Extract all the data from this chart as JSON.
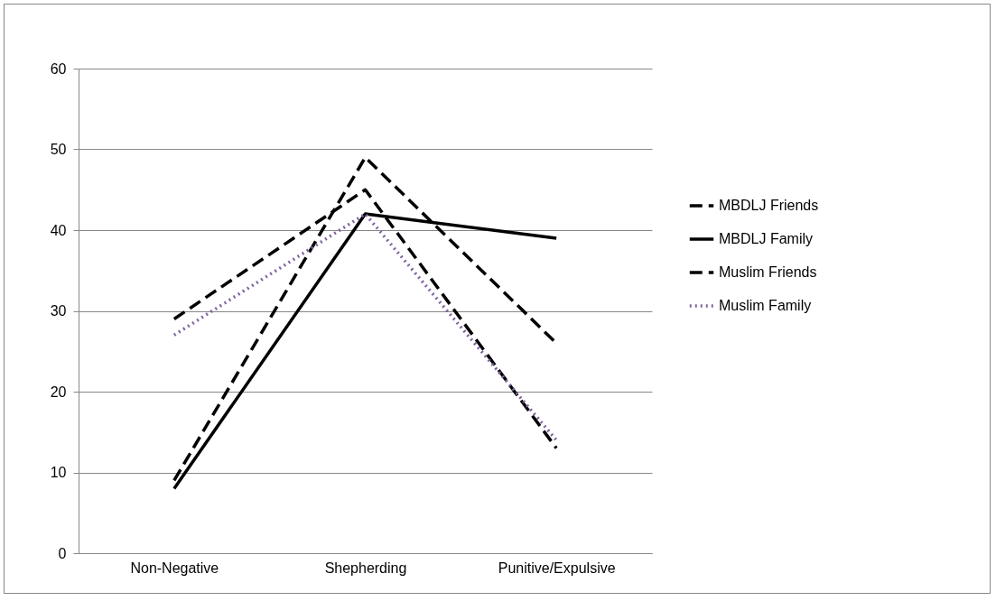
{
  "chart_data": {
    "type": "line",
    "categories": [
      "Non-Negative",
      "Shepherding",
      "Punitive/Expulsive"
    ],
    "series": [
      {
        "name": "MBDLJ Friends",
        "color": "#000000",
        "line_style": "dashed",
        "values": [
          9,
          49,
          26
        ]
      },
      {
        "name": "MBDLJ Family",
        "color": "#000000",
        "line_style": "solid",
        "values": [
          8,
          42,
          39
        ]
      },
      {
        "name": "Muslim Friends",
        "color": "#000000",
        "line_style": "dashed",
        "values": [
          29,
          45,
          13
        ]
      },
      {
        "name": "Muslim Family",
        "color": "#8064a2",
        "line_style": "dotted",
        "values": [
          27,
          42,
          14
        ]
      }
    ],
    "ylim": [
      0,
      60
    ],
    "yticks": [
      0,
      10,
      20,
      30,
      40,
      50,
      60
    ],
    "grid": "y",
    "legend": "right",
    "marker": "none"
  }
}
